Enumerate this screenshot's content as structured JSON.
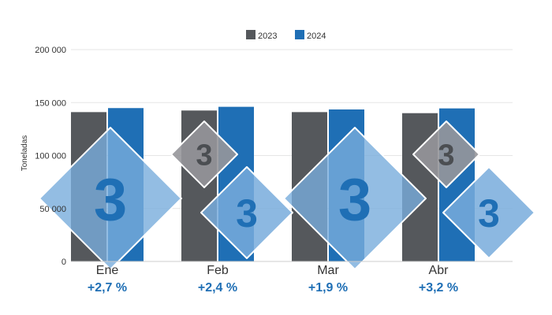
{
  "chart_data": {
    "type": "bar",
    "categories": [
      "Ene",
      "Feb",
      "Mar",
      "Abr"
    ],
    "series": [
      {
        "name": "2023",
        "color": "#55585c",
        "values": [
          141000,
          142500,
          141000,
          140000
        ]
      },
      {
        "name": "2024",
        "color": "#1f6fb5",
        "values": [
          144800,
          146000,
          143500,
          144500
        ]
      }
    ],
    "changes": [
      "+2,7 %",
      "+2,4 %",
      "+1,9 %",
      "+3,2 %"
    ],
    "ylabel": "Toneladas",
    "ylim": [
      0,
      200000
    ],
    "yticks": [
      0,
      50000,
      100000,
      150000,
      200000
    ],
    "ytick_labels": [
      "0",
      "50 000",
      "100 000",
      "150 000",
      "200 000"
    ],
    "legend_position": "top-center",
    "grid": true
  }
}
